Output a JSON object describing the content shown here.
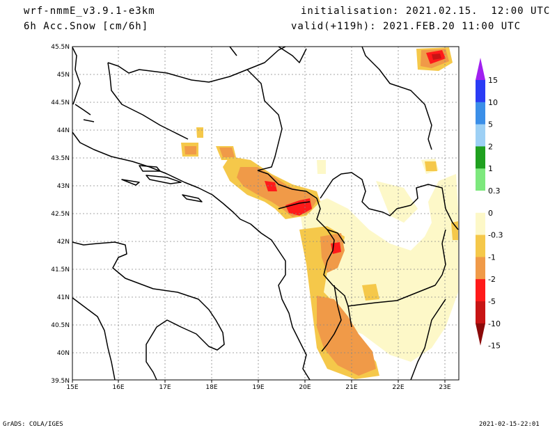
{
  "header": {
    "model": "wrf-nmmE_v3.9.1-e3km",
    "variable": "6h Acc.Snow [cm/6h]",
    "initialisation": "initialisation: 2021.02.15.  12:00 UTC",
    "valid": "valid(+119h): 2021.FEB.20 11:00 UTC"
  },
  "footer": {
    "left": "GrADS: COLA/IGES",
    "right": "2021-02-15-22:01"
  },
  "axes": {
    "lon_labels": [
      "15E",
      "16E",
      "17E",
      "18E",
      "19E",
      "20E",
      "21E",
      "22E",
      "23E"
    ],
    "lat_labels": [
      "45.5N",
      "45N",
      "44.5N",
      "44N",
      "43.5N",
      "43N",
      "42.5N",
      "42N",
      "41.5N",
      "41N",
      "40.5N",
      "40N",
      "39.5N"
    ]
  },
  "colorbar": {
    "labels": [
      "15",
      "10",
      "5",
      "2",
      "1",
      "0.3",
      "0",
      "-0.3",
      "-1",
      "-2",
      "-5",
      "-10",
      "-15"
    ],
    "colors": [
      "#a020f0",
      "#2a3cf5",
      "#3b8fe8",
      "#9dd0f5",
      "#1fa01f",
      "#7de87d",
      "#ffffff",
      "#fdf8c8",
      "#f5c84a",
      "#f09a48",
      "#ff1a1a",
      "#c81414",
      "#8b0a0a"
    ]
  }
}
